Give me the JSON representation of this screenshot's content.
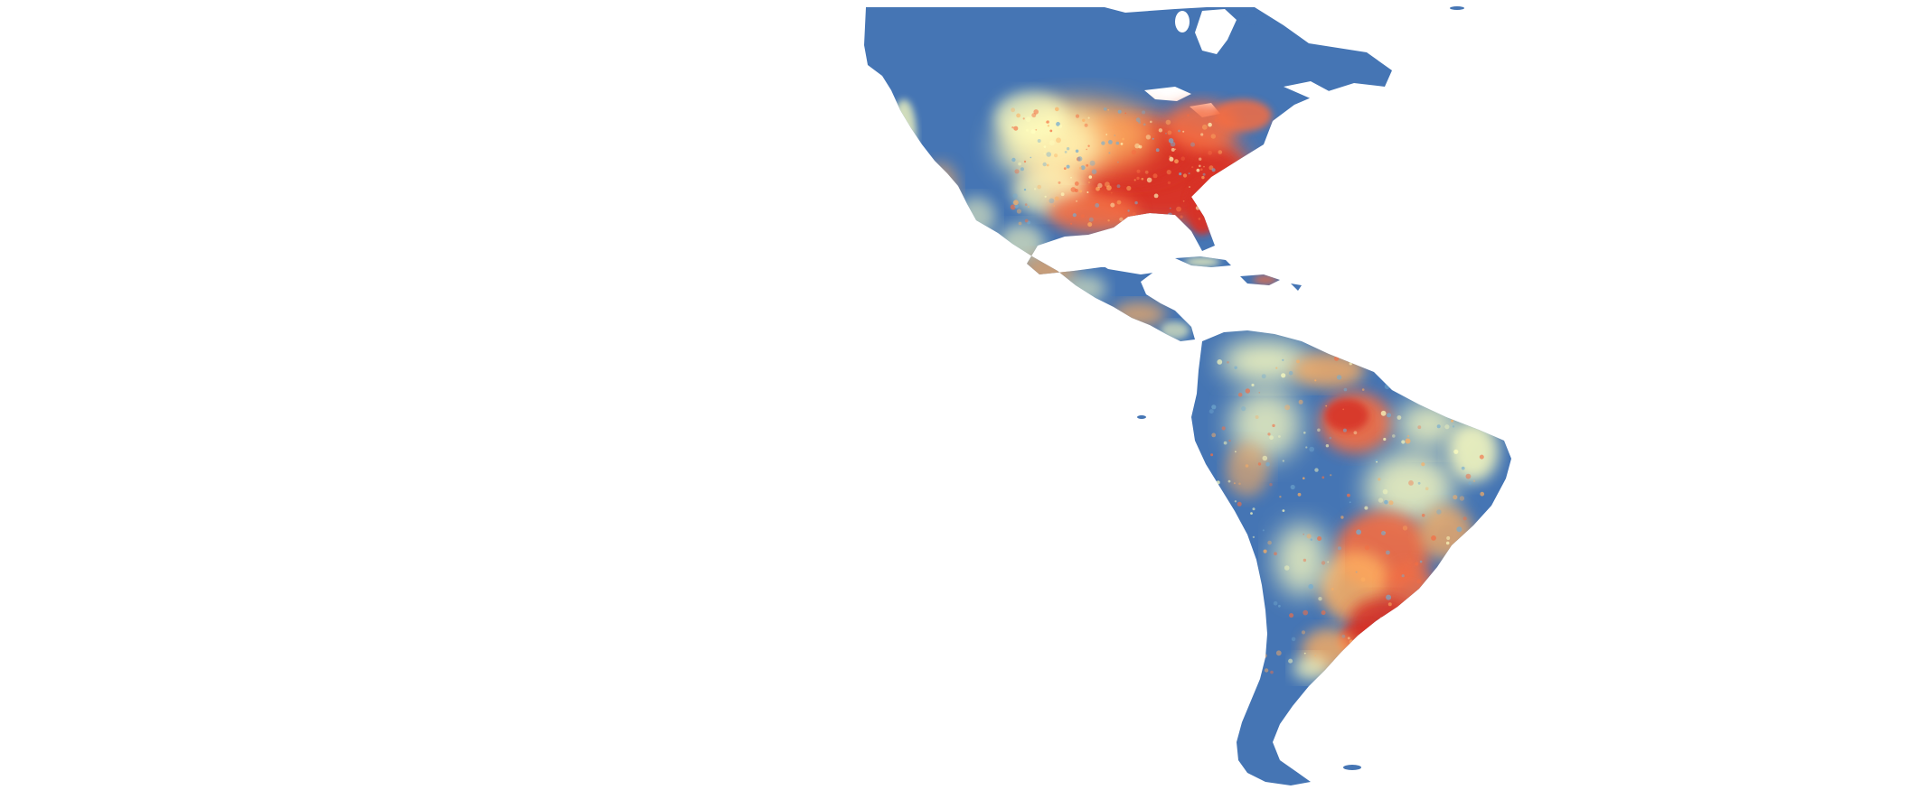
{
  "map": {
    "region": "Americas",
    "colors": {
      "low": "#4575b4",
      "mid_low": "#74add1",
      "mid": "#ffffbf",
      "mid_high": "#fdae61",
      "high": "#f46d43",
      "very_high": "#d73027",
      "background": "#ffffff"
    }
  }
}
